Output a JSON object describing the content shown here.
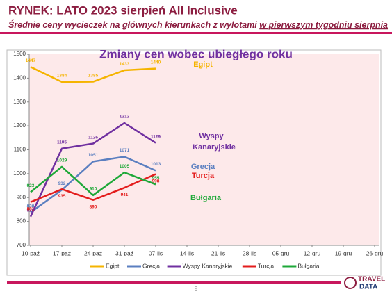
{
  "header": {
    "title": "RYNEK: LATO 2023 sierpień All Inclusive",
    "subtitle": [
      "Średnie ceny wycieczek na głównych kierunkach z wylotami ",
      "w pierwszym tygodniu sierpnia"
    ],
    "page_number": "9",
    "logo": [
      "TRAVEL",
      "DATA"
    ]
  },
  "chart_data": {
    "type": "line",
    "title": "Zmiany cen wobec ubiegłego roku",
    "categories": [
      "10-paź",
      "17-paź",
      "24-paź",
      "31-paź",
      "07-lis",
      "14-lis",
      "21-lis",
      "28-lis",
      "05-gru",
      "12-gru",
      "19-gru",
      "26-gru"
    ],
    "series": [
      {
        "name": "Egipt",
        "color": "#f5b400",
        "values": [
          1447,
          1384,
          1385,
          1433,
          1440,
          null,
          null,
          null,
          null,
          null,
          null,
          null
        ]
      },
      {
        "name": "Grecja",
        "color": "#5b7fc0",
        "values": [
          838,
          932,
          1051,
          1071,
          1013,
          null,
          null,
          null,
          null,
          null,
          null,
          null
        ]
      },
      {
        "name": "Wyspy Kanaryjskie",
        "color": "#7030a0",
        "values": [
          820,
          1105,
          1126,
          1212,
          1129,
          null,
          null,
          null,
          null,
          null,
          null,
          null
        ]
      },
      {
        "name": "Turcja",
        "color": "#e31c1c",
        "values": [
          881,
          935,
          890,
          941,
          998,
          null,
          null,
          null,
          null,
          null,
          null,
          null
        ]
      },
      {
        "name": "Bułgaria",
        "color": "#1ea838",
        "values": [
          923,
          1029,
          910,
          1005,
          955,
          null,
          null,
          null,
          null,
          null,
          null,
          null
        ]
      }
    ],
    "annotations": [
      {
        "lines": [
          "Egipt"
        ],
        "color": "#f5b400"
      },
      {
        "lines": [
          "Wyspy",
          "Kanaryjskie"
        ],
        "color": "#7030a0"
      },
      {
        "lines": [
          "Grecja"
        ],
        "color": "#5b7fc0"
      },
      {
        "lines": [
          "Turcja"
        ],
        "color": "#e31c1c"
      },
      {
        "lines": [
          "Bułgaria"
        ],
        "color": "#1ea838"
      }
    ],
    "ylim": [
      700,
      1500
    ],
    "yticks": [
      700,
      800,
      900,
      1000,
      1100,
      1200,
      1300,
      1400,
      1500
    ],
    "grid": false,
    "legend": "bottom"
  }
}
